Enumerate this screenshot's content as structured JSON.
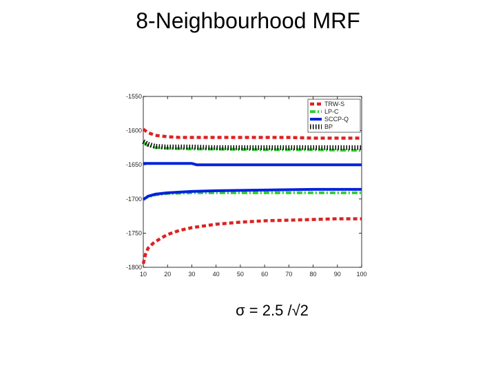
{
  "slide_title": "8-Neighbourhood MRF",
  "caption": "σ = 2.5 /√2",
  "colors": {
    "trws": "#dd2222",
    "lpc": "#33cc33",
    "sccpq": "#0022dd",
    "bp": "#000000"
  },
  "chart_data": {
    "type": "line",
    "title": "",
    "xlabel": "",
    "ylabel": "",
    "xlim": [
      10,
      100
    ],
    "ylim": [
      -1800,
      -1550
    ],
    "xticks": [
      "10",
      "20",
      "30",
      "40",
      "50",
      "60",
      "70",
      "80",
      "90",
      "100"
    ],
    "yticks": [
      "-1550",
      "-1600",
      "-1650",
      "-1700",
      "-1750",
      "-1800"
    ],
    "legend_position": "top-right",
    "grid": false,
    "series": [
      {
        "name": "TRW-S",
        "color": "#dd2222",
        "style": "dashed",
        "x": [
          10,
          12,
          15,
          20,
          25,
          30,
          40,
          50,
          60,
          70,
          80,
          90,
          100
        ],
        "y": [
          -1598,
          -1603,
          -1607,
          -1609,
          -1610,
          -1610,
          -1610,
          -1610,
          -1610,
          -1610,
          -1611,
          -1611,
          -1611
        ]
      },
      {
        "name": "",
        "color": "#dd2222",
        "style": "dashed",
        "x": [
          10,
          11,
          12,
          14,
          17,
          20,
          25,
          30,
          40,
          50,
          60,
          70,
          80,
          90,
          100
        ],
        "y": [
          -1795,
          -1780,
          -1772,
          -1765,
          -1758,
          -1752,
          -1746,
          -1742,
          -1737,
          -1734,
          -1732,
          -1731,
          -1730,
          -1729,
          -1729
        ]
      },
      {
        "name": "LP-C",
        "color": "#33cc33",
        "style": "dashdot",
        "x": [
          10,
          12,
          15,
          20,
          30,
          40,
          60,
          80,
          100
        ],
        "y": [
          -1617,
          -1622,
          -1625,
          -1626,
          -1627,
          -1627,
          -1628,
          -1628,
          -1629
        ]
      },
      {
        "name": "",
        "color": "#33cc33",
        "style": "dashdot",
        "x": [
          10,
          12,
          15,
          20,
          30,
          40,
          60,
          80,
          100
        ],
        "y": [
          -1700,
          -1697,
          -1694,
          -1692,
          -1691,
          -1691,
          -1691,
          -1691,
          -1691
        ]
      },
      {
        "name": "SCCP-Q",
        "color": "#0022dd",
        "style": "solid",
        "x": [
          10,
          30,
          32,
          40,
          60,
          80,
          100
        ],
        "y": [
          -1648,
          -1648,
          -1650,
          -1650,
          -1650,
          -1650,
          -1650
        ]
      },
      {
        "name": "",
        "color": "#0022dd",
        "style": "solid",
        "x": [
          10,
          12,
          15,
          20,
          30,
          40,
          60,
          80,
          100
        ],
        "y": [
          -1701,
          -1696,
          -1693,
          -1691,
          -1689,
          -1688,
          -1687,
          -1686,
          -1686
        ]
      },
      {
        "name": "BP",
        "color": "#000000",
        "style": "dotted",
        "x": [
          10,
          12,
          15,
          20,
          30,
          40,
          60,
          80,
          100
        ],
        "y": [
          -1616,
          -1620,
          -1623,
          -1624,
          -1624,
          -1625,
          -1625,
          -1625,
          -1625
        ]
      }
    ]
  }
}
